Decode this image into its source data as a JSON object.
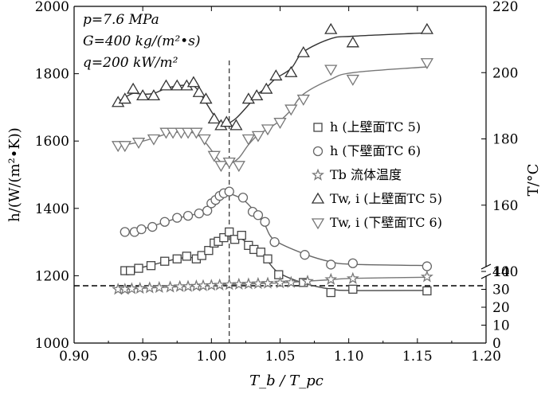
{
  "chart_data": {
    "type": "scatter",
    "xlabel": "T_b / T_pc",
    "ylabel_left": "h/(W/(m²•K))",
    "ylabel_right": "T/°C",
    "xlim": [
      0.9,
      1.2
    ],
    "ylim_left": [
      1000,
      2000
    ],
    "right_axis": {
      "lower_segment": {
        "range": [
          0,
          40
        ],
        "ticks": [
          "0",
          "10",
          "20",
          "30",
          "40"
        ]
      },
      "upper_segment": {
        "range": [
          140,
          220
        ],
        "ticks": [
          "140",
          "160",
          "180",
          "200",
          "220"
        ]
      },
      "axis_break": true
    },
    "x_ticks": [
      "0.90",
      "0.95",
      "1.00",
      "1.05",
      "1.10",
      "1.15",
      "1.20"
    ],
    "y_ticks_left": [
      "1000",
      "1200",
      "1400",
      "1600",
      "1800",
      "2000"
    ],
    "conditions": [
      "p=7.6 MPa",
      "G=400 kg/(m²•s)",
      "q=200 kW/m²"
    ],
    "vertical_dashed_line_x": 1.013,
    "horizontal_dashed_line_T": 32,
    "legend": [
      {
        "symbol": "square",
        "text": "h (上壁面TC 5)"
      },
      {
        "symbol": "circle",
        "text": "h (下壁面TC 6)"
      },
      {
        "symbol": "star",
        "text": "Tb 流体温度"
      },
      {
        "symbol": "triangle-up",
        "text": "Tw, i (上壁面TC 5)"
      },
      {
        "symbol": "triangle-down",
        "text": "Tw, i (下壁面TC 6)"
      }
    ],
    "series": [
      {
        "name": "h (上壁面TC 5)",
        "axis": "left",
        "marker": "square",
        "x": [
          0.937,
          0.941,
          0.947,
          0.956,
          0.966,
          0.975,
          0.982,
          0.989,
          0.993,
          0.998,
          1.002,
          1.005,
          1.009,
          1.013,
          1.017,
          1.022,
          1.027,
          1.031,
          1.036,
          1.041,
          1.049,
          1.067,
          1.087,
          1.103,
          1.157
        ],
        "y": [
          1215,
          1215,
          1222,
          1230,
          1243,
          1250,
          1258,
          1250,
          1260,
          1275,
          1297,
          1302,
          1313,
          1330,
          1308,
          1320,
          1290,
          1278,
          1270,
          1250,
          1203,
          1180,
          1150,
          1160,
          1155
        ]
      },
      {
        "name": "h (下壁面TC 6)",
        "axis": "left",
        "marker": "circle",
        "x": [
          0.937,
          0.944,
          0.949,
          0.957,
          0.966,
          0.975,
          0.983,
          0.991,
          0.997,
          1.0,
          1.003,
          1.006,
          1.009,
          1.013,
          1.023,
          1.03,
          1.034,
          1.039,
          1.046,
          1.068,
          1.087,
          1.103,
          1.157
        ],
        "y": [
          1330,
          1330,
          1338,
          1345,
          1360,
          1372,
          1378,
          1385,
          1393,
          1415,
          1425,
          1437,
          1445,
          1450,
          1432,
          1390,
          1380,
          1360,
          1300,
          1262,
          1233,
          1237,
          1228
        ]
      },
      {
        "name": "Tb 流体温度",
        "axis": "right",
        "marker": "star",
        "x": [
          0.932,
          0.937,
          0.942,
          0.948,
          0.955,
          0.962,
          0.97,
          0.977,
          0.983,
          0.989,
          0.994,
          1.0,
          1.006,
          1.013,
          1.02,
          1.027,
          1.034,
          1.041,
          1.05,
          1.058,
          1.07,
          1.087,
          1.103,
          1.157
        ],
        "y": [
          30,
          30,
          30.3,
          30.5,
          30.8,
          31,
          31.2,
          31.5,
          31.6,
          31.8,
          32,
          32.2,
          32.4,
          32.6,
          32.8,
          33,
          33.2,
          33.4,
          33.6,
          33.8,
          34.5,
          35.5,
          36,
          37
        ]
      },
      {
        "name": "Tw, i (上壁面TC 5)",
        "axis": "right",
        "marker": "triangle-up",
        "x": [
          0.932,
          0.937,
          0.943,
          0.95,
          0.958,
          0.967,
          0.975,
          0.982,
          0.987,
          0.991,
          0.996,
          1.002,
          1.007,
          1.011,
          1.018,
          1.027,
          1.033,
          1.04,
          1.047,
          1.058,
          1.067,
          1.087,
          1.103,
          1.157
        ],
        "y": [
          191,
          192,
          195,
          193,
          193,
          196,
          196,
          196,
          197,
          194,
          192,
          186,
          184,
          185,
          184,
          192,
          193,
          195,
          199,
          200,
          206,
          213,
          209,
          213
        ]
      },
      {
        "name": "Tw, i (下壁面TC 6)",
        "axis": "right",
        "marker": "triangle-down",
        "x": [
          0.932,
          0.937,
          0.947,
          0.958,
          0.967,
          0.972,
          0.978,
          0.983,
          0.989,
          0.995,
          1.002,
          1.007,
          1.013,
          1.02,
          1.027,
          1.034,
          1.041,
          1.05,
          1.058,
          1.067,
          1.087,
          1.103,
          1.157
        ],
        "y": [
          178,
          178,
          179,
          180,
          182,
          182,
          182,
          182,
          182,
          180,
          175,
          172,
          173,
          172,
          180,
          181,
          183,
          185,
          189,
          192,
          201,
          198,
          203
        ]
      }
    ]
  }
}
